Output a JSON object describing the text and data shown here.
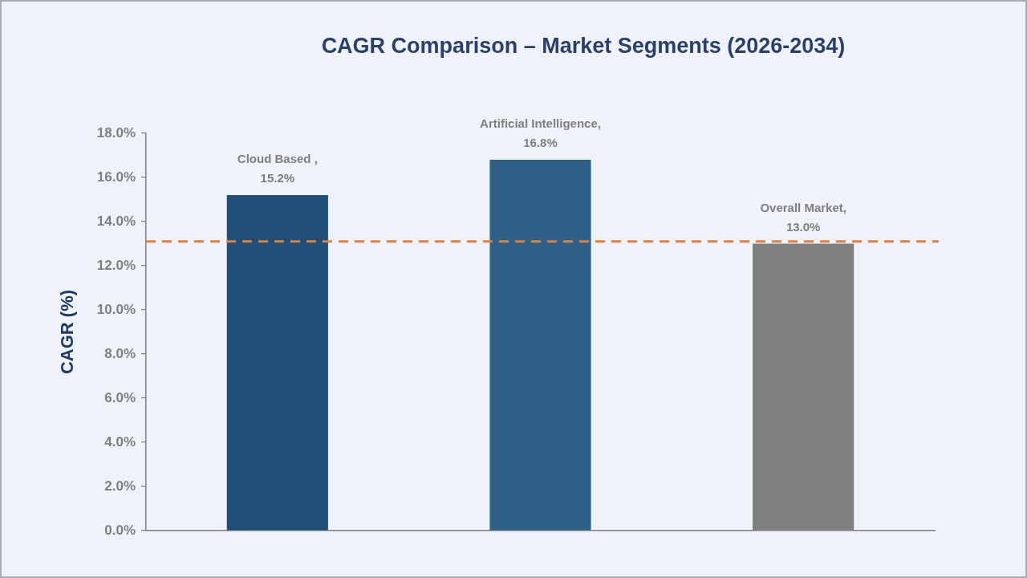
{
  "chart_data": {
    "type": "bar",
    "title": "CAGR Comparison – Market Segments (2026-2034)",
    "ylabel": "CAGR (%)",
    "categories": [
      null,
      null,
      null
    ],
    "values": [
      15.2,
      16.8,
      13.0
    ],
    "colors": [
      "#1f4e79",
      "#2e6088",
      "#808080"
    ],
    "value_labels": [
      "Cloud Based ,\n15.2%",
      "Artificial Intelligence,\n16.8%",
      "Overall Market,\n13.0%"
    ],
    "ylim": [
      0,
      18
    ],
    "yticks": [
      {
        "value": 0,
        "label": "0.0%"
      },
      {
        "value": 2,
        "label": "2.0%"
      },
      {
        "value": 4,
        "label": "4.0%"
      },
      {
        "value": 6,
        "label": "6.0%"
      },
      {
        "value": 8,
        "label": "8.0%"
      },
      {
        "value": 10,
        "label": "10.0%"
      },
      {
        "value": 12,
        "label": "12.0%"
      },
      {
        "value": 14,
        "label": "14.0%"
      },
      {
        "value": 16,
        "label": "16.0%"
      },
      {
        "value": 18,
        "label": "18.0%"
      }
    ],
    "tick_labels": "y",
    "ref_lines": [
      {
        "axis": "y",
        "value": 13.1,
        "color": "#e2813f",
        "line_style": "dashed"
      }
    ]
  }
}
